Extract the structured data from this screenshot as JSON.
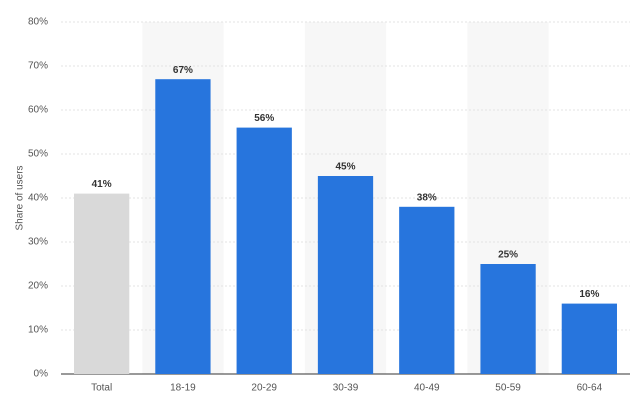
{
  "chart_data": {
    "type": "bar",
    "y_label": "Share of users",
    "categories": [
      "Total",
      "18-19",
      "20-29",
      "30-39",
      "40-49",
      "50-59",
      "60-64"
    ],
    "values": [
      41,
      67,
      56,
      45,
      38,
      25,
      16
    ],
    "value_labels": [
      "41%",
      "67%",
      "56%",
      "45%",
      "38%",
      "25%",
      "16%"
    ],
    "colors": [
      "#d9d9d9",
      "#2775dd",
      "#2775dd",
      "#2775dd",
      "#2775dd",
      "#2775dd",
      "#2775dd"
    ],
    "ylim": [
      0,
      80
    ],
    "yticks": [
      {
        "value": 0,
        "label": "0%"
      },
      {
        "value": 10,
        "label": "10%"
      },
      {
        "value": 20,
        "label": "20%"
      },
      {
        "value": 30,
        "label": "30%"
      },
      {
        "value": 40,
        "label": "40%"
      },
      {
        "value": 50,
        "label": "50%"
      },
      {
        "value": 60,
        "label": "60%"
      },
      {
        "value": 70,
        "label": "70%"
      },
      {
        "value": 80,
        "label": "80%"
      }
    ],
    "grid": true
  }
}
